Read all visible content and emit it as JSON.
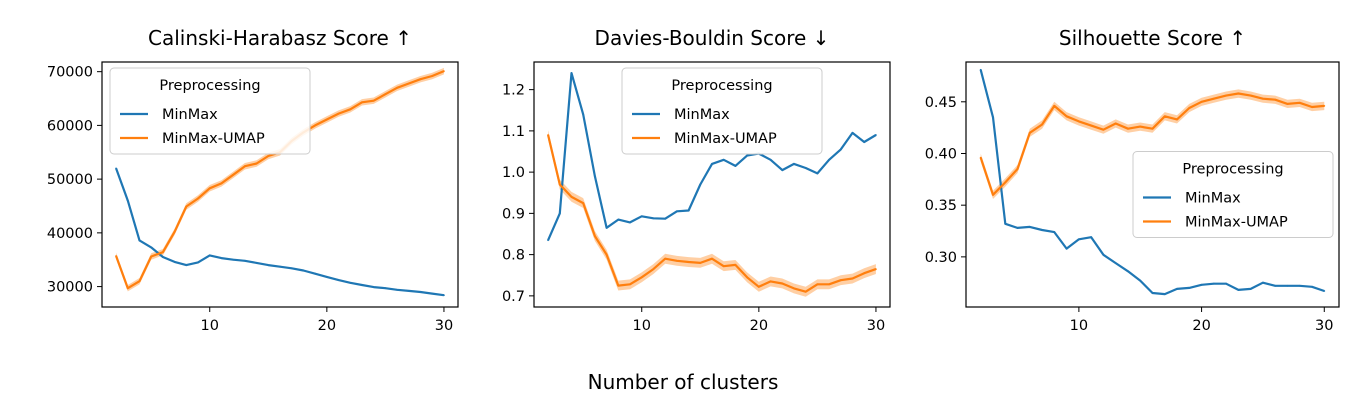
{
  "figure": {
    "xlabel": "Number of clusters"
  },
  "colors": {
    "MinMax": "#1f77b4",
    "MinMax-UMAP": "#ff7f0e",
    "band": "#ffbf86"
  },
  "chart_data": [
    {
      "type": "line",
      "title": "Calinski-Harabasz Score  ↑",
      "xlabel": "",
      "ylabel": "",
      "xlim": [
        0.8,
        31.2
      ],
      "ylim": [
        26200,
        71800
      ],
      "xticks": [
        10,
        20,
        30
      ],
      "yticks": [
        30000,
        40000,
        50000,
        60000,
        70000
      ],
      "legend": {
        "title": "Preprocessing",
        "location": "upper left"
      },
      "x": [
        2,
        3,
        4,
        5,
        6,
        7,
        8,
        9,
        10,
        11,
        12,
        13,
        14,
        15,
        16,
        17,
        18,
        19,
        20,
        21,
        22,
        23,
        24,
        25,
        26,
        27,
        28,
        29,
        30
      ],
      "series": [
        {
          "name": "MinMax",
          "values": [
            52000,
            46000,
            38600,
            37300,
            35500,
            34600,
            34000,
            34500,
            35800,
            35300,
            35000,
            34800,
            34400,
            34000,
            33700,
            33400,
            33000,
            32400,
            31800,
            31200,
            30700,
            30300,
            29900,
            29700,
            29400,
            29200,
            29000,
            28700,
            28400
          ]
        },
        {
          "name": "MinMax-UMAP",
          "values": [
            35700,
            29700,
            31000,
            35600,
            36400,
            40200,
            44900,
            46400,
            48300,
            49200,
            50800,
            52400,
            52900,
            54300,
            55000,
            57100,
            58700,
            60000,
            61100,
            62200,
            63000,
            64300,
            64600,
            65800,
            67000,
            67800,
            68600,
            69200,
            70100
          ],
          "band": 600
        }
      ]
    },
    {
      "type": "line",
      "title": "Davies-Bouldin Score  ↓",
      "xlabel": "",
      "ylabel": "",
      "xlim": [
        0.8,
        31.2
      ],
      "ylim": [
        0.673,
        1.267
      ],
      "xticks": [
        10,
        20,
        30
      ],
      "yticks": [
        0.7,
        0.8,
        0.9,
        1.0,
        1.1,
        1.2
      ],
      "legend": {
        "title": "Preprocessing",
        "location": "upper center"
      },
      "x": [
        2,
        3,
        4,
        5,
        6,
        7,
        8,
        9,
        10,
        11,
        12,
        13,
        14,
        15,
        16,
        17,
        18,
        19,
        20,
        21,
        22,
        23,
        24,
        25,
        26,
        27,
        28,
        29,
        30
      ],
      "series": [
        {
          "name": "MinMax",
          "values": [
            0.835,
            0.9,
            1.24,
            1.14,
            0.99,
            0.865,
            0.885,
            0.878,
            0.893,
            0.888,
            0.887,
            0.905,
            0.907,
            0.97,
            1.02,
            1.03,
            1.015,
            1.04,
            1.045,
            1.03,
            1.005,
            1.02,
            1.01,
            0.997,
            1.03,
            1.055,
            1.095,
            1.073,
            1.09
          ]
        },
        {
          "name": "MinMax-UMAP",
          "values": [
            1.09,
            0.97,
            0.94,
            0.925,
            0.845,
            0.8,
            0.725,
            0.728,
            0.745,
            0.765,
            0.79,
            0.785,
            0.782,
            0.78,
            0.79,
            0.772,
            0.775,
            0.745,
            0.722,
            0.735,
            0.73,
            0.718,
            0.71,
            0.728,
            0.728,
            0.738,
            0.742,
            0.755,
            0.765
          ],
          "band": 0.012
        }
      ]
    },
    {
      "type": "line",
      "title": "Silhouette Score  ↑",
      "xlabel": "",
      "ylabel": "",
      "xlim": [
        0.8,
        31.2
      ],
      "ylim": [
        0.2515,
        0.4885
      ],
      "xticks": [
        10,
        20,
        30
      ],
      "yticks": [
        0.3,
        0.35,
        0.4,
        0.45
      ],
      "legend": {
        "title": "Preprocessing",
        "location": "center right"
      },
      "x": [
        2,
        3,
        4,
        5,
        6,
        7,
        8,
        9,
        10,
        11,
        12,
        13,
        14,
        15,
        16,
        17,
        18,
        19,
        20,
        21,
        22,
        23,
        24,
        25,
        26,
        27,
        28,
        29,
        30
      ],
      "series": [
        {
          "name": "MinMax",
          "values": [
            0.481,
            0.435,
            0.332,
            0.328,
            0.329,
            0.326,
            0.324,
            0.308,
            0.317,
            0.319,
            0.302,
            0.294,
            0.286,
            0.277,
            0.265,
            0.264,
            0.269,
            0.27,
            0.273,
            0.274,
            0.274,
            0.268,
            0.269,
            0.275,
            0.272,
            0.272,
            0.272,
            0.271,
            0.267
          ]
        },
        {
          "name": "MinMax-UMAP",
          "values": [
            0.396,
            0.36,
            0.372,
            0.385,
            0.42,
            0.428,
            0.446,
            0.436,
            0.431,
            0.427,
            0.423,
            0.429,
            0.424,
            0.426,
            0.424,
            0.436,
            0.433,
            0.444,
            0.45,
            0.453,
            0.456,
            0.458,
            0.456,
            0.453,
            0.452,
            0.448,
            0.449,
            0.445,
            0.446
          ],
          "band": 0.004
        }
      ]
    }
  ]
}
